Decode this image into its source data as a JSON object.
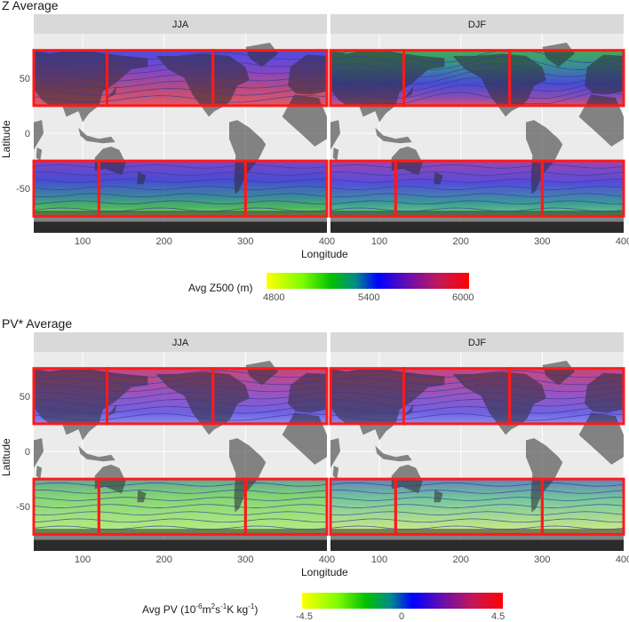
{
  "chart_data": [
    {
      "type": "heatmap",
      "title": "Z Average",
      "panels": [
        "JJA",
        "DJF"
      ],
      "xlabel": "Longitude",
      "ylabel": "Latitude",
      "x_ticks": [
        100,
        200,
        300,
        400
      ],
      "y_ticks": [
        50,
        0,
        -50
      ],
      "xlim": [
        40,
        400
      ],
      "ylim": [
        -90,
        90
      ],
      "regions": [
        {
          "lon": [
            40,
            130
          ],
          "lat": [
            25,
            75
          ]
        },
        {
          "lon": [
            130,
            260
          ],
          "lat": [
            25,
            75
          ]
        },
        {
          "lon": [
            260,
            400
          ],
          "lat": [
            25,
            75
          ]
        },
        {
          "lon": [
            40,
            120
          ],
          "lat": [
            -75,
            -25
          ]
        },
        {
          "lon": [
            120,
            300
          ],
          "lat": [
            -75,
            -25
          ]
        },
        {
          "lon": [
            300,
            400
          ],
          "lat": [
            -75,
            -25
          ]
        }
      ],
      "legend": {
        "title": "Avg Z500 (m)",
        "ticks": [
          "4800",
          "5400",
          "6000"
        ],
        "range": [
          4800,
          6000
        ]
      }
    },
    {
      "type": "heatmap",
      "title": "PV* Average",
      "panels": [
        "JJA",
        "DJF"
      ],
      "xlabel": "Longitude",
      "ylabel": "Latitude",
      "x_ticks": [
        100,
        200,
        300,
        400
      ],
      "y_ticks": [
        50,
        0,
        -50
      ],
      "xlim": [
        40,
        400
      ],
      "ylim": [
        -90,
        90
      ],
      "regions": [
        {
          "lon": [
            40,
            130
          ],
          "lat": [
            25,
            75
          ]
        },
        {
          "lon": [
            130,
            260
          ],
          "lat": [
            25,
            75
          ]
        },
        {
          "lon": [
            260,
            400
          ],
          "lat": [
            25,
            75
          ]
        },
        {
          "lon": [
            40,
            120
          ],
          "lat": [
            -75,
            -25
          ]
        },
        {
          "lon": [
            120,
            300
          ],
          "lat": [
            -75,
            -25
          ]
        },
        {
          "lon": [
            300,
            400
          ],
          "lat": [
            -75,
            -25
          ]
        }
      ],
      "legend": {
        "title_main": "Avg PV (10",
        "title_exp1": "-6",
        "title_mid1": "m",
        "title_exp2": "2",
        "title_mid2": "s",
        "title_exp3": "-1",
        "title_mid3": "K kg",
        "title_exp4": "-1",
        "title_end": ")",
        "ticks": [
          "-4.5",
          "0",
          "4.5"
        ],
        "range": [
          -4.5,
          4.5
        ]
      }
    }
  ],
  "colors": {
    "panel_bg": "#ebebeb",
    "strip_bg": "#d9d9d9",
    "grid": "#ffffff",
    "land": "#2b2b2b",
    "region_border": "#ff1a1a",
    "contour": "#3a3a9a",
    "scale": [
      "#ffff00",
      "#7cfc00",
      "#00c000",
      "#008a8a",
      "#0000ff",
      "#6a0dad",
      "#c2185b",
      "#ff0000"
    ]
  }
}
